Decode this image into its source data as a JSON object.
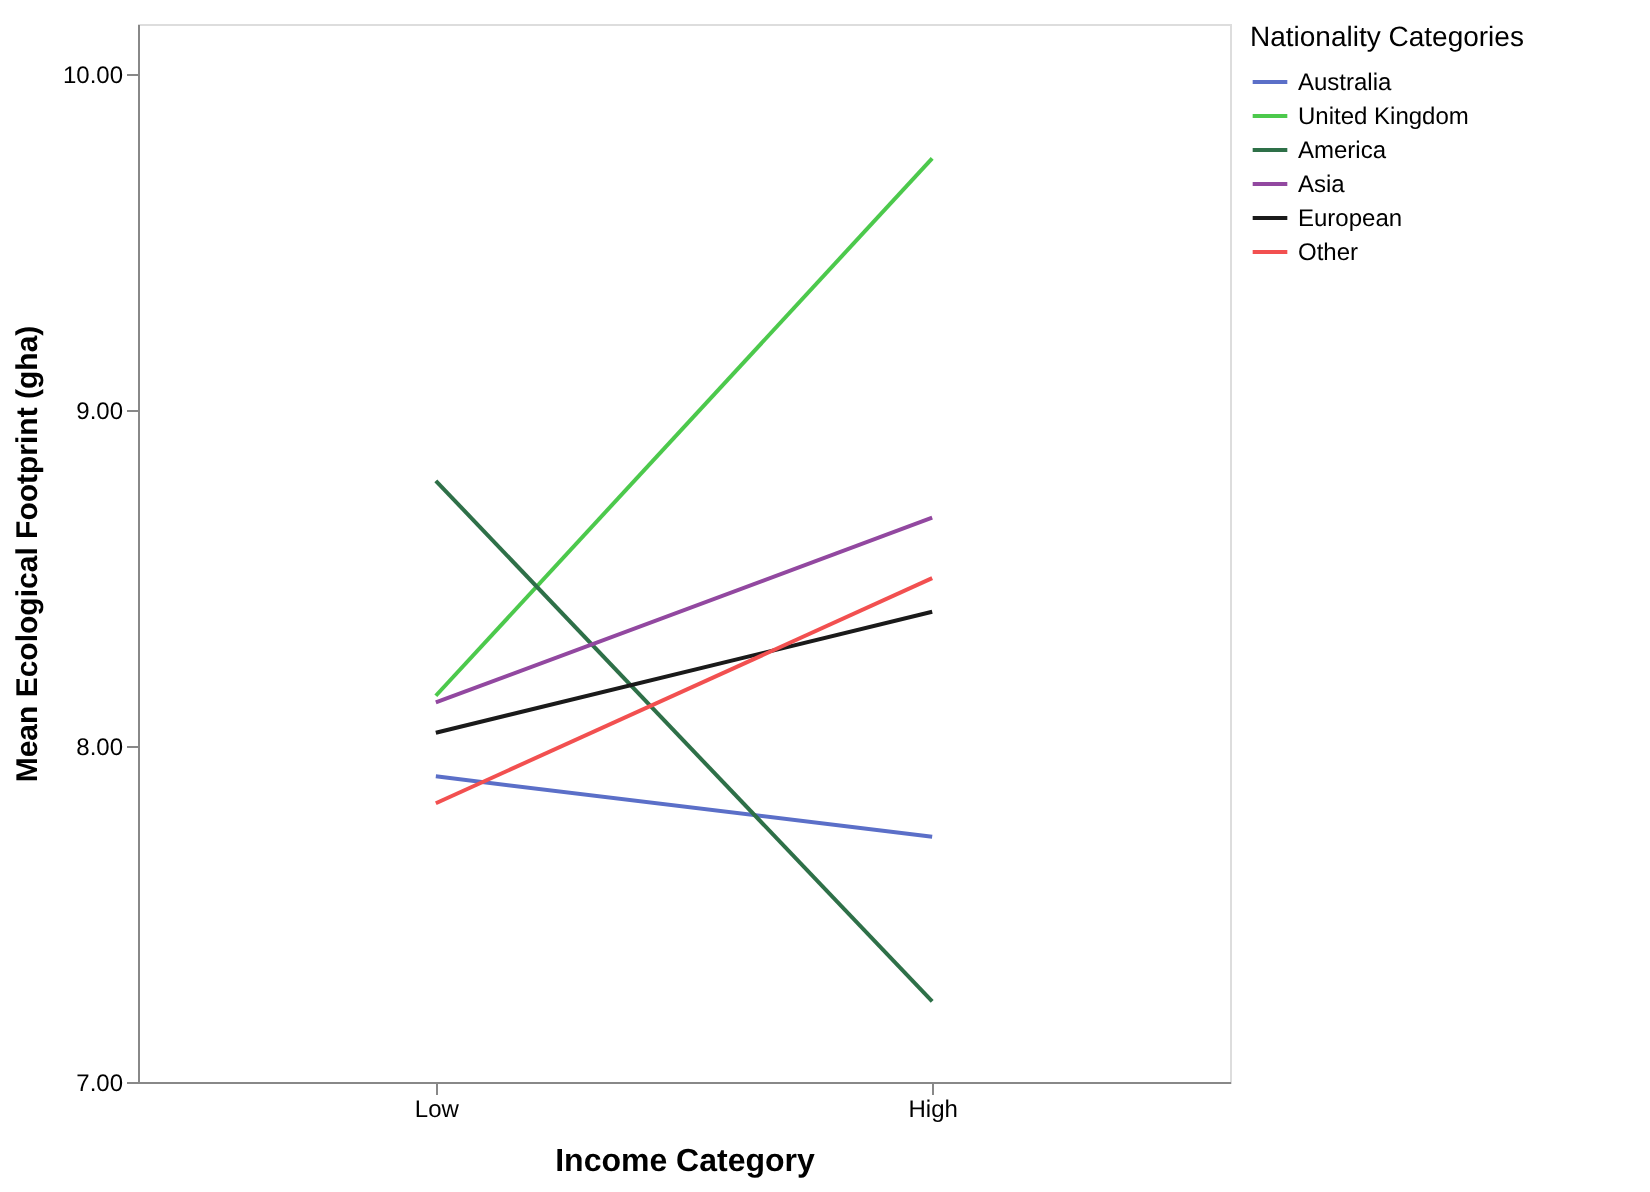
{
  "chart_data": {
    "type": "line",
    "xlabel": "Income Category",
    "ylabel": "Mean Ecological Footprint (gha)",
    "legend_title": "Nationality Categories",
    "categories": [
      "Low",
      "High"
    ],
    "series": [
      {
        "name": "Australia",
        "color": "#5b6fc8",
        "values": [
          7.91,
          7.73
        ]
      },
      {
        "name": "United Kingdom",
        "color": "#4cc94c",
        "values": [
          8.15,
          9.75
        ]
      },
      {
        "name": "America",
        "color": "#2e7048",
        "values": [
          8.79,
          7.24
        ]
      },
      {
        "name": "Asia",
        "color": "#9248a0",
        "values": [
          8.13,
          8.68
        ]
      },
      {
        "name": "European",
        "color": "#1a1a1a",
        "values": [
          8.04,
          8.4
        ]
      },
      {
        "name": "Other",
        "color": "#f25050",
        "values": [
          7.83,
          8.5
        ]
      }
    ],
    "ylim": [
      7.0,
      10.15
    ],
    "yticks": [
      {
        "value": 7,
        "label": "7.00"
      },
      {
        "value": 8,
        "label": "8.00"
      },
      {
        "value": 9,
        "label": "9.00"
      },
      {
        "value": 10,
        "label": "10.00"
      }
    ],
    "grid": false,
    "legend": "top right",
    "marker": "none",
    "line_style": "solid"
  }
}
